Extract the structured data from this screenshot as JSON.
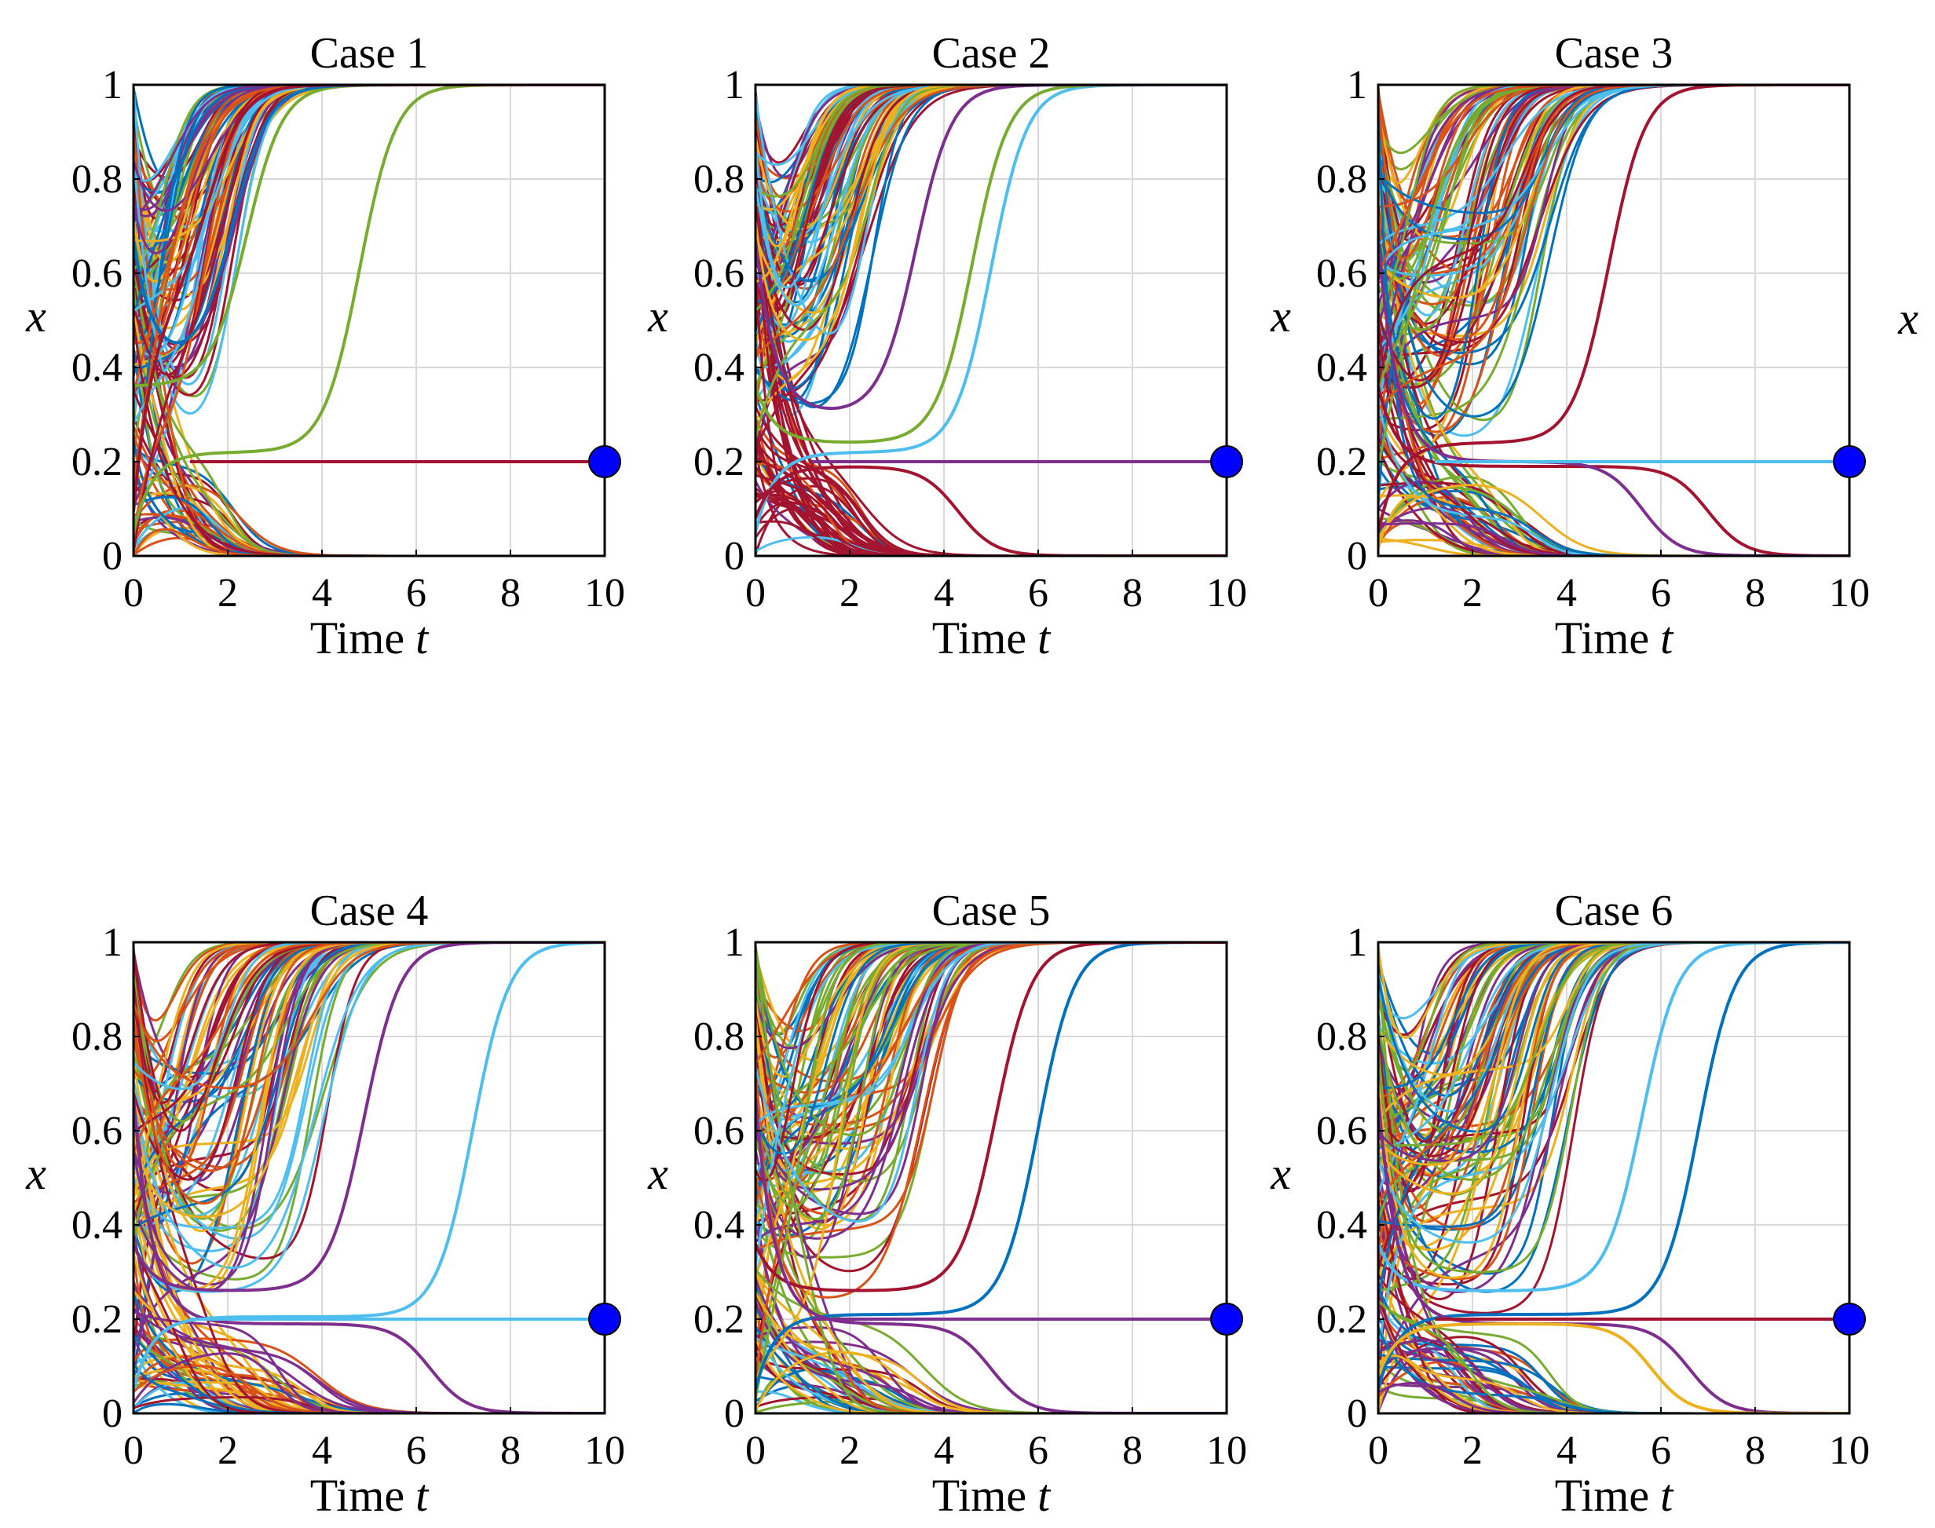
{
  "figure": {
    "orphan_axis_label": "x",
    "colors": {
      "traj_colors": [
        "#0072BD",
        "#D95319",
        "#EDB120",
        "#7E2F8E",
        "#77AC30",
        "#4DBEEE",
        "#A2142F"
      ],
      "marker": "#0000FF",
      "grid": "#D9D9D9"
    }
  },
  "chart_data": [
    {
      "type": "line",
      "title": "Case 1",
      "xlabel": "Time",
      "xlabel_var": "t",
      "ylabel": "x",
      "xlim": [
        0,
        10
      ],
      "ylim": [
        0,
        1
      ],
      "xticks": [
        "0",
        "2",
        "4",
        "6",
        "8",
        "10"
      ],
      "yticks": [
        "0",
        "0.2",
        "0.4",
        "0.6",
        "0.8",
        "1"
      ],
      "grid": true,
      "equilibrium": {
        "x": 10,
        "y": 0.2
      },
      "stable_line": {
        "y": 0.2,
        "color": "#A2142F"
      },
      "highlight": [
        {
          "y0": 0.22,
          "t_mid": 4.8,
          "color": "#77AC30"
        },
        {
          "y0": 0.36,
          "t_mid": 2.4,
          "color": "#77AC30"
        },
        {
          "y0": 0.4,
          "t_mid": 2.1,
          "color": "#0072BD"
        },
        {
          "y0": 0.52,
          "t_mid": 1.6,
          "color": "#A2142F"
        }
      ],
      "series_summary": "Many trajectories from initial x in (0,1); those starting above the threshold converge to 1 by t≈3, others decay to 0 by t≈4; one red trajectory stays at 0.2."
    },
    {
      "type": "line",
      "title": "Case 2",
      "xlabel": "Time",
      "xlabel_var": "t",
      "ylabel": "x",
      "xlim": [
        0,
        10
      ],
      "ylim": [
        0,
        1
      ],
      "xticks": [
        "0",
        "2",
        "4",
        "6",
        "8",
        "10"
      ],
      "yticks": [
        "0",
        "0.2",
        "0.4",
        "0.6",
        "0.8",
        "1"
      ],
      "grid": true,
      "equilibrium": {
        "x": 10,
        "y": 0.2
      },
      "stable_line": {
        "y": 0.2,
        "color": "#7E2F8E"
      },
      "highlight": [
        {
          "y0": 0.22,
          "t_mid": 5.0,
          "color": "#4DBEEE"
        },
        {
          "y0": 0.24,
          "t_mid": 4.6,
          "color": "#77AC30"
        },
        {
          "y0": 0.3,
          "t_mid": 3.4,
          "color": "#7E2F8E"
        },
        {
          "y0": 0.19,
          "t_mid": 4.3,
          "color": "#A2142F",
          "down": true
        }
      ],
      "series_summary": "Dense red bundle near t∈[0,1]; upper trajectories rise to 1 by t≈6, lower ones decay to 0 by t≈6; purple line stays at 0.2."
    },
    {
      "type": "line",
      "title": "Case 3",
      "xlabel": "Time",
      "xlabel_var": "t",
      "ylabel": "x",
      "xlim": [
        0,
        10
      ],
      "ylim": [
        0,
        1
      ],
      "xticks": [
        "0",
        "2",
        "4",
        "6",
        "8",
        "10"
      ],
      "yticks": [
        "0",
        "0.2",
        "0.4",
        "0.6",
        "0.8",
        "1"
      ],
      "grid": true,
      "equilibrium": {
        "x": 10,
        "y": 0.2
      },
      "stable_line": {
        "y": 0.2,
        "color": "#4DBEEE"
      },
      "highlight": [
        {
          "y0": 0.24,
          "t_mid": 4.9,
          "color": "#A2142F"
        },
        {
          "y0": 0.19,
          "t_mid": 7.0,
          "color": "#A2142F",
          "down": true
        },
        {
          "y0": 0.2,
          "t_mid": 5.6,
          "color": "#7E2F8E",
          "down": true
        }
      ],
      "series_summary": "Trajectories fan out between t=1 and t=6 toward 1 (upper) or toward 0 (lower, slowest reaches 0 near t≈9); cyan line stays at 0.2."
    },
    {
      "type": "line",
      "title": "Case 4",
      "xlabel": "Time",
      "xlabel_var": "t",
      "ylabel": "x",
      "xlim": [
        0,
        10
      ],
      "ylim": [
        0,
        1
      ],
      "xticks": [
        "0",
        "2",
        "4",
        "6",
        "8",
        "10"
      ],
      "yticks": [
        "0",
        "0.2",
        "0.4",
        "0.6",
        "0.8",
        "1"
      ],
      "grid": true,
      "equilibrium": {
        "x": 10,
        "y": 0.2
      },
      "stable_line": {
        "y": 0.2,
        "color": "#4DBEEE"
      },
      "highlight": [
        {
          "y0": 0.205,
          "t_mid": 7.2,
          "color": "#4DBEEE"
        },
        {
          "y0": 0.26,
          "t_mid": 4.9,
          "color": "#7E2F8E"
        },
        {
          "y0": 0.19,
          "t_mid": 6.3,
          "color": "#7E2F8E",
          "down": true
        }
      ],
      "series_summary": "Broad fan of trajectories; cyan trajectory rises to 1 near t≈8; lower trajectories decay to 0 by t≈7; cyan line stays at 0.2."
    },
    {
      "type": "line",
      "title": "Case 5",
      "xlabel": "Time",
      "xlabel_var": "t",
      "ylabel": "x",
      "xlim": [
        0,
        10
      ],
      "ylim": [
        0,
        1
      ],
      "xticks": [
        "0",
        "2",
        "4",
        "6",
        "8",
        "10"
      ],
      "yticks": [
        "0",
        "0.2",
        "0.4",
        "0.6",
        "0.8",
        "1"
      ],
      "grid": true,
      "equilibrium": {
        "x": 10,
        "y": 0.2
      },
      "stable_line": {
        "y": 0.2,
        "color": "#7E2F8E"
      },
      "highlight": [
        {
          "y0": 0.21,
          "t_mid": 6.0,
          "color": "#0072BD"
        },
        {
          "y0": 0.26,
          "t_mid": 5.1,
          "color": "#A2142F"
        },
        {
          "y0": 0.19,
          "t_mid": 5.0,
          "color": "#7E2F8E",
          "down": true
        }
      ],
      "series_summary": "Dense fan of trajectories converging to 1 by t≈7 or to 0 by t≈7; purple line stays at 0.2."
    },
    {
      "type": "line",
      "title": "Case 6",
      "xlabel": "Time",
      "xlabel_var": "t",
      "ylabel": "x",
      "xlim": [
        0,
        10
      ],
      "ylim": [
        0,
        1
      ],
      "xticks": [
        "0",
        "2",
        "4",
        "6",
        "8",
        "10"
      ],
      "yticks": [
        "0",
        "0.2",
        "0.4",
        "0.6",
        "0.8",
        "1"
      ],
      "grid": true,
      "equilibrium": {
        "x": 10,
        "y": 0.2
      },
      "stable_line": {
        "y": 0.2,
        "color": "#A2142F"
      },
      "highlight": [
        {
          "y0": 0.21,
          "t_mid": 6.8,
          "color": "#0072BD"
        },
        {
          "y0": 0.26,
          "t_mid": 5.6,
          "color": "#4DBEEE"
        },
        {
          "y0": 0.19,
          "t_mid": 6.6,
          "color": "#7E2F8E",
          "down": true
        },
        {
          "y0": 0.19,
          "t_mid": 5.8,
          "color": "#EDB120",
          "down": true
        }
      ],
      "series_summary": "Dense fan of trajectories converging to 1 by t≈8 or to 0 by t≈8; red line stays at 0.2."
    }
  ]
}
